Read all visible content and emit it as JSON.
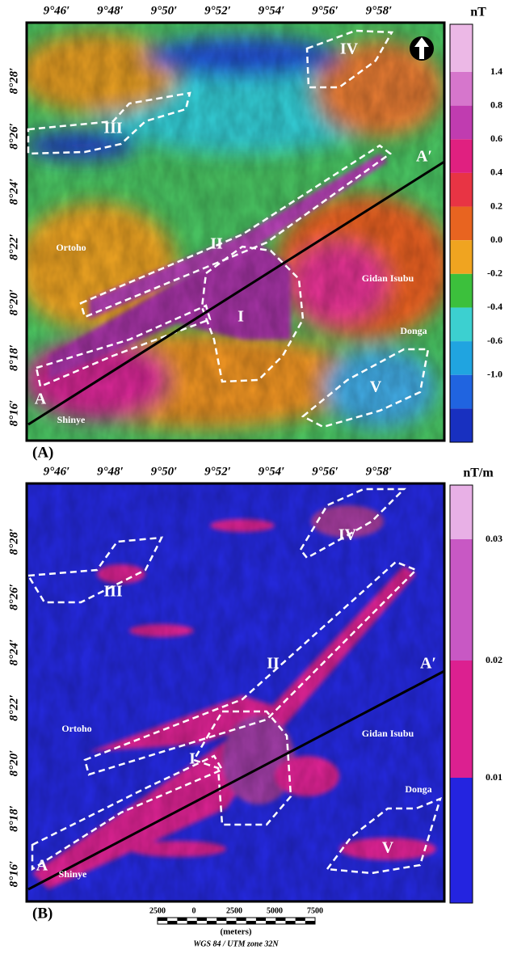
{
  "panels": [
    {
      "label": "(A)",
      "unit": "nT",
      "colorbar_labels": [
        "1.4",
        "0.8",
        "0.6",
        "0.4",
        "0.2",
        "0.0",
        "-0.2",
        "-0.4",
        "-0.6",
        "-1.0"
      ],
      "x_labels": [
        "9°46′",
        "9°48′",
        "9°50′",
        "9°52′",
        "9°54′",
        "9°56′",
        "9°58′"
      ],
      "y_labels": [
        "8°28′",
        "8°26′",
        "8°24′",
        "8°22′",
        "8°20′",
        "8°18′",
        "8°16′"
      ],
      "zones": [
        "I",
        "II",
        "III",
        "IV",
        "V"
      ],
      "profile": [
        "A",
        "A′"
      ],
      "places": [
        "Ortoho",
        "Gidan Isubu",
        "Donga",
        "Shinye"
      ]
    },
    {
      "label": "(B)",
      "unit": "nT/m",
      "colorbar_labels": [
        "0.03",
        "0.02",
        "0.01"
      ],
      "x_labels": [
        "9°46′",
        "9°48′",
        "9°50′",
        "9°52′",
        "9°54′",
        "9°56′",
        "9°58′"
      ],
      "y_labels": [
        "8°28′",
        "8°26′",
        "8°24′",
        "8°22′",
        "8°20′",
        "8°18′",
        "8°16′"
      ],
      "zones": [
        "I",
        "II",
        "III",
        "IV",
        "V"
      ],
      "profile": [
        "A",
        "A′"
      ],
      "places": [
        "Ortoho",
        "Gidan Isubu",
        "Donga",
        "Shinye"
      ]
    }
  ],
  "scale_bar": {
    "ticks": [
      "2500",
      "0",
      "2500",
      "5000",
      "7500"
    ],
    "unit": "(meters)"
  },
  "projection": "WGS 84 / UTM zone 32N"
}
